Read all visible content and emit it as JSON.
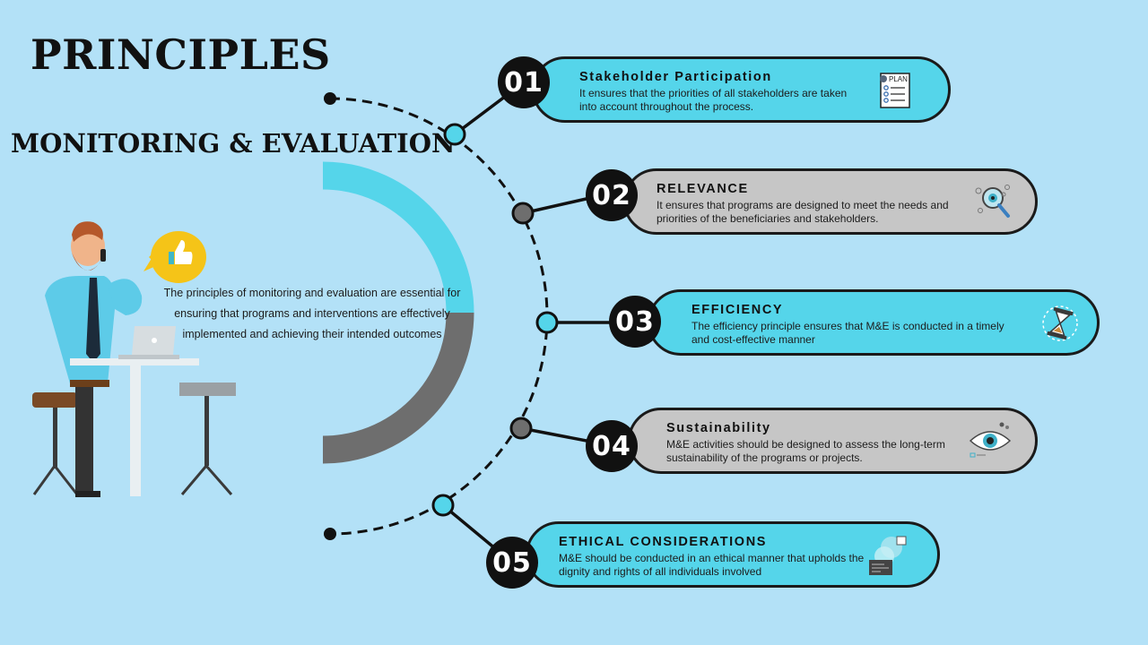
{
  "title": "PRINCIPLES",
  "subtitle": "MONITORING  & EVALUATION",
  "description": "The principles of monitoring and evaluation are essential for ensuring that programs and interventions are effectively implemented and achieving their intended outcomes",
  "colors": {
    "background": "#b3e1f7",
    "cyan": "#55d5ea",
    "grey": "#c6c6c6",
    "dark": "#111111"
  },
  "principles": [
    {
      "number": "01",
      "title": "Stakeholder Participation",
      "text": "It ensures that the priorities of all stakeholders are taken into account throughout the process.",
      "color": "cyan",
      "icon": "plan-checklist-icon",
      "icon_text": "PLAN"
    },
    {
      "number": "02",
      "title": "RELEVANCE",
      "text": "It ensures that programs are designed to meet the needs and priorities of the beneficiaries and stakeholders.",
      "color": "grey",
      "icon": "magnifier-icon"
    },
    {
      "number": "03",
      "title": "EFFICIENCY",
      "text": "The efficiency principle ensures that M&E is conducted in a timely and cost-effective manner",
      "color": "cyan",
      "icon": "hourglass-icon"
    },
    {
      "number": "04",
      "title": "Sustainability",
      "text": "M&E activities should be designed to assess the long-term sustainability of the programs or projects.",
      "color": "grey",
      "icon": "eye-icon"
    },
    {
      "number": "05",
      "title": "ETHICAL CONSIDERATIONS",
      "text": "M&E should be conducted in an ethical manner that upholds the dignity and rights of all individuals involved",
      "color": "cyan",
      "icon": "data-screens-icon"
    }
  ]
}
